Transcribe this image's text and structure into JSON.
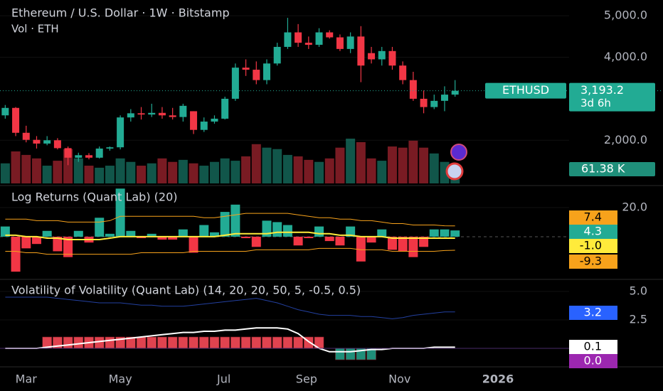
{
  "chart_data": [
    {
      "type": "candlestick",
      "title": "Ethereum / U.S. Dollar · 1W · Bitstamp",
      "subtitle": "Vol · ETH",
      "symbol": "ETHUSD",
      "price_label": "3,193.2",
      "countdown": "3d 6h",
      "up_color": "#22ab94",
      "down_color": "#f23645",
      "open": [
        2600,
        2780,
        2180,
        2010,
        1920,
        2000,
        1810,
        1580,
        1640,
        1580,
        1800,
        1830,
        2550,
        2650,
        2620,
        2660,
        2600,
        2560,
        2700,
        2250,
        2450,
        2520,
        3000,
        3750,
        3700,
        3450,
        3850,
        4250,
        4600,
        4350,
        4300,
        4600,
        4480,
        4200,
        4500,
        4100,
        3950,
        4150,
        3800,
        3450,
        3000,
        2800,
        2950,
        3100
      ],
      "high": [
        2850,
        2800,
        2350,
        2100,
        2100,
        2050,
        1850,
        1700,
        1690,
        1850,
        1850,
        2600,
        2750,
        2800,
        2880,
        2800,
        2780,
        2880,
        2700,
        2550,
        2600,
        3050,
        3850,
        3950,
        3900,
        3950,
        4350,
        4950,
        4800,
        4500,
        4700,
        4650,
        4550,
        4600,
        4750,
        4250,
        4250,
        4250,
        3900,
        3650,
        3200,
        3100,
        3300,
        3450
      ],
      "low": [
        2520,
        2100,
        1950,
        1800,
        1880,
        1780,
        1400,
        1480,
        1540,
        1560,
        1750,
        1780,
        2450,
        2500,
        2560,
        2520,
        2500,
        2450,
        2150,
        2200,
        2400,
        2500,
        2950,
        3550,
        3350,
        3350,
        3800,
        4200,
        4250,
        4200,
        4250,
        4450,
        4150,
        4100,
        3400,
        3850,
        3800,
        3700,
        3350,
        2950,
        2650,
        2750,
        2700,
        3050
      ],
      "close": [
        2780,
        2180,
        2010,
        1920,
        2000,
        1810,
        1580,
        1640,
        1580,
        1800,
        1830,
        2550,
        2650,
        2620,
        2660,
        2600,
        2560,
        2830,
        2250,
        2450,
        2520,
        3000,
        3750,
        3700,
        3450,
        3850,
        4250,
        4600,
        4350,
        4300,
        4600,
        4480,
        4200,
        4500,
        3800,
        3950,
        4150,
        3800,
        3450,
        3000,
        2800,
        2950,
        3100,
        3193.2
      ],
      "volume": [
        69,
        110,
        98,
        86,
        61,
        78,
        118,
        86,
        61,
        54,
        61,
        86,
        74,
        61,
        69,
        86,
        74,
        81,
        69,
        61,
        74,
        86,
        78,
        93,
        135,
        123,
        118,
        98,
        93,
        81,
        74,
        86,
        123,
        154,
        142,
        86,
        78,
        127,
        123,
        147,
        123,
        103,
        74,
        61.38
      ],
      "volume_label": "61.38 K",
      "ylim": [
        960,
        5380
      ],
      "yticks": [
        {
          "value": 5000,
          "label": "5,000.0"
        },
        {
          "value": 4000,
          "label": "4,000.0"
        },
        {
          "value": 2000,
          "label": "2,000.0"
        }
      ],
      "xlim": [
        -0.5,
        53.9
      ],
      "xticks": [
        {
          "value": 2,
          "label": "Mar"
        },
        {
          "value": 11,
          "label": "May"
        },
        {
          "value": 20.9,
          "label": "Jul"
        },
        {
          "value": 28.8,
          "label": "Sep"
        },
        {
          "value": 37.7,
          "label": "Nov"
        },
        {
          "value": 47.1,
          "label": "2026"
        }
      ]
    },
    {
      "type": "bar",
      "title": "Log Returns (Quant Lab) (20)",
      "values": [
        7,
        -24,
        -8,
        -5,
        4,
        -10,
        -14,
        4,
        -4,
        13,
        2,
        33,
        4,
        -1,
        2,
        -2,
        -2,
        5,
        -11,
        8,
        3,
        17,
        22,
        -1,
        -7,
        11,
        10,
        8,
        -6,
        -1,
        7,
        -3,
        -6,
        7,
        -17,
        -4,
        5,
        -9,
        -10,
        -14,
        -7,
        5,
        5,
        4.3
      ],
      "value_label": "4.3",
      "up_color": "#22ab94",
      "down_color": "#f23645",
      "lines": [
        {
          "color": "#f7a21b",
          "value_label": "7.4",
          "values": [
            12,
            12,
            12,
            11,
            11,
            11,
            10,
            10,
            10,
            10,
            11,
            14,
            14,
            14,
            14,
            14,
            14,
            14,
            14,
            13,
            13,
            14,
            15,
            16,
            16,
            16,
            16,
            16,
            15,
            14,
            13,
            13,
            12,
            12,
            11,
            11,
            10,
            9,
            9,
            8,
            8,
            8,
            7.5,
            7.4
          ]
        },
        {
          "color": "#ffeb3b",
          "value_label": "-1.0",
          "values": [
            1,
            1,
            0,
            0,
            -1,
            -1,
            -2,
            -2,
            -2,
            -2,
            -1,
            0,
            0,
            0,
            0,
            0,
            0,
            0,
            0,
            0,
            0,
            1,
            2,
            2,
            2,
            2,
            3,
            3,
            3,
            3,
            2,
            2,
            1,
            1,
            0,
            0,
            0,
            -1,
            -1,
            -1,
            -1,
            -1,
            -1,
            -1.0
          ]
        },
        {
          "color": "#f7a21b",
          "value_label": "-9.3",
          "values": [
            -10,
            -10,
            -11,
            -11,
            -12,
            -12,
            -12,
            -12,
            -12,
            -12,
            -12,
            -12,
            -12,
            -11,
            -11,
            -11,
            -11,
            -11,
            -10,
            -10,
            -10,
            -10,
            -10,
            -10,
            -9,
            -9,
            -9,
            -9,
            -9,
            -9,
            -8,
            -8,
            -8,
            -8,
            -9,
            -9,
            -9,
            -10,
            -10,
            -10,
            -10,
            -10,
            -9.5,
            -9.3
          ]
        }
      ],
      "ylim": [
        -28.8,
        34.6
      ],
      "yticks": [
        {
          "value": 20,
          "label": "20.0"
        }
      ]
    },
    {
      "type": "bar",
      "title": "Volatility of Volatility (Quant Lab) (14, 20, 20, 50, 5, -0.5, 0.5)",
      "values": [
        null,
        null,
        null,
        null,
        1,
        1,
        1,
        1,
        1,
        1,
        1,
        1,
        1,
        1,
        1,
        1,
        1,
        1,
        1,
        1,
        1,
        1,
        1,
        1,
        1,
        1,
        1,
        1,
        1,
        1,
        1,
        null,
        -1,
        -1,
        -1,
        -1,
        null,
        null,
        null,
        null,
        null,
        null,
        null,
        null
      ],
      "up_color": "#e0434f",
      "down_color": "#1f8f7a",
      "lines": [
        {
          "color": "#2340a0",
          "value_label": "3.2",
          "label_color": "#2962ff",
          "values": [
            4.5,
            4.5,
            4.5,
            4.5,
            4.5,
            4.4,
            4.3,
            4.2,
            4.1,
            4.0,
            4.0,
            4.0,
            3.9,
            3.8,
            3.8,
            3.7,
            3.7,
            3.7,
            3.8,
            3.9,
            4.0,
            4.1,
            4.2,
            4.3,
            4.4,
            4.2,
            4.0,
            3.7,
            3.4,
            3.2,
            3.0,
            2.9,
            2.9,
            2.9,
            2.8,
            2.8,
            2.7,
            2.6,
            2.7,
            2.9,
            3.0,
            3.1,
            3.2,
            3.2
          ]
        },
        {
          "color": "#ffffff",
          "value_label": "0.1",
          "label_color": "#ffffff",
          "values": [
            0,
            0,
            0,
            0,
            0.1,
            0.2,
            0.3,
            0.4,
            0.5,
            0.6,
            0.7,
            0.8,
            0.9,
            1.0,
            1.1,
            1.2,
            1.3,
            1.4,
            1.4,
            1.5,
            1.5,
            1.6,
            1.6,
            1.7,
            1.8,
            1.8,
            1.8,
            1.7,
            1.3,
            0.6,
            0.0,
            -0.3,
            -0.3,
            -0.3,
            -0.2,
            -0.1,
            -0.1,
            0,
            0,
            0,
            0,
            0.1,
            0.1,
            0.1
          ]
        }
      ],
      "zero_label": {
        "value": 0,
        "label": "0.0"
      },
      "ylim": [
        -1.56,
        5.875
      ],
      "yticks": [
        {
          "value": 5,
          "label": "5.0"
        },
        {
          "value": 2.5,
          "label": "2.5"
        }
      ]
    }
  ]
}
